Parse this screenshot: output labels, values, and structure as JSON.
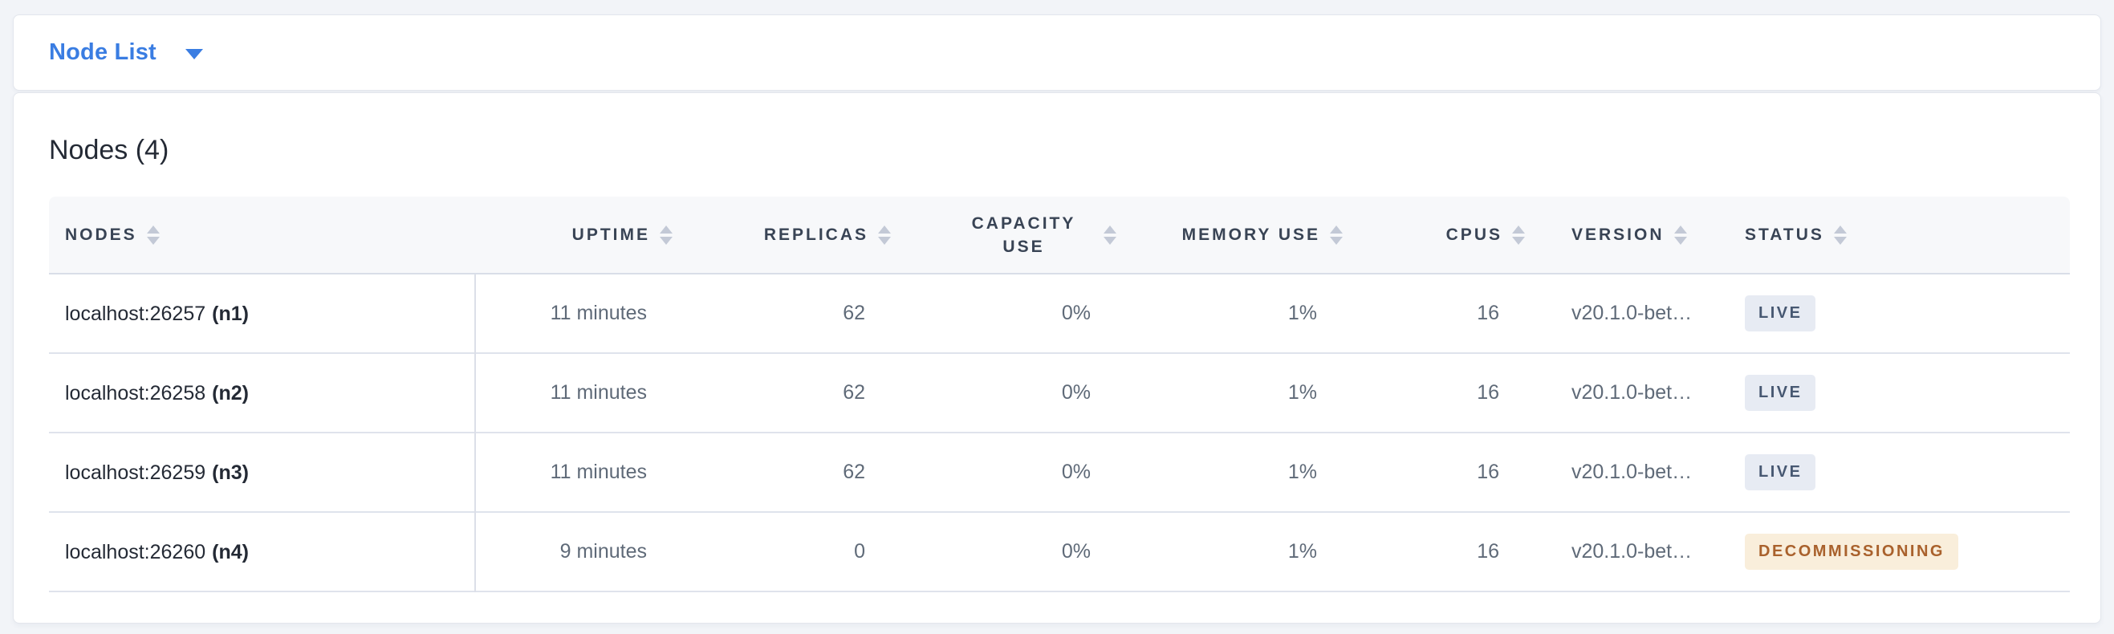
{
  "header": {
    "view_label": "Node List"
  },
  "main": {
    "title": "Nodes (4)"
  },
  "table": {
    "columns": [
      {
        "key": "nodes",
        "label": "NODES",
        "align": "left"
      },
      {
        "key": "uptime",
        "label": "UPTIME",
        "align": "right"
      },
      {
        "key": "replicas",
        "label": "REPLICAS",
        "align": "right"
      },
      {
        "key": "capacity",
        "label": "CAPACITY USE",
        "align": "right"
      },
      {
        "key": "memory",
        "label": "MEMORY USE",
        "align": "right"
      },
      {
        "key": "cpus",
        "label": "CPUS",
        "align": "right"
      },
      {
        "key": "version",
        "label": "VERSION",
        "align": "left"
      },
      {
        "key": "status",
        "label": "STATUS",
        "align": "left"
      }
    ],
    "rows": [
      {
        "address": "localhost:26257",
        "id": "(n1)",
        "uptime": "11 minutes",
        "replicas": "62",
        "capacity": "0%",
        "memory": "1%",
        "cpus": "16",
        "version": "v20.1.0-bet…",
        "status": "LIVE",
        "status_type": "live"
      },
      {
        "address": "localhost:26258",
        "id": "(n2)",
        "uptime": "11 minutes",
        "replicas": "62",
        "capacity": "0%",
        "memory": "1%",
        "cpus": "16",
        "version": "v20.1.0-bet…",
        "status": "LIVE",
        "status_type": "live"
      },
      {
        "address": "localhost:26259",
        "id": "(n3)",
        "uptime": "11 minutes",
        "replicas": "62",
        "capacity": "0%",
        "memory": "1%",
        "cpus": "16",
        "version": "v20.1.0-bet…",
        "status": "LIVE",
        "status_type": "live"
      },
      {
        "address": "localhost:26260",
        "id": "(n4)",
        "uptime": "9 minutes",
        "replicas": "0",
        "capacity": "0%",
        "memory": "1%",
        "cpus": "16",
        "version": "v20.1.0-bet…",
        "status": "DECOMMISSIONING",
        "status_type": "decommissioning"
      }
    ]
  },
  "icons": {
    "dropdown_caret": "chevron-down-icon",
    "column_sort": "sort-arrows-icon"
  },
  "colors": {
    "accent_blue": "#3a7de2",
    "page_background": "#f2f4f8",
    "header_row_background": "#f7f8fa",
    "header_text": "#394455",
    "live_badge_background": "#e7ebf3",
    "live_badge_text": "#475872",
    "decommissioning_badge_background": "#f9eedb",
    "decommissioning_badge_text": "#a9612c"
  }
}
